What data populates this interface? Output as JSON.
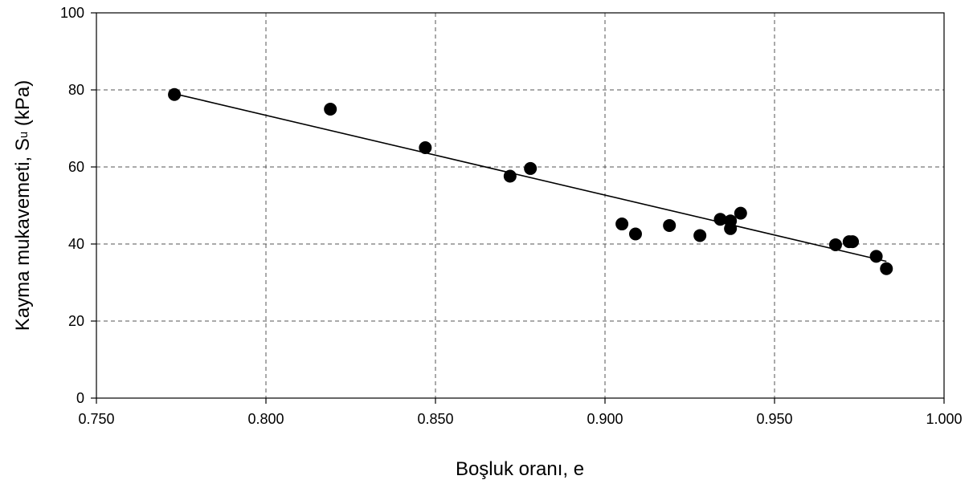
{
  "chart_data": {
    "type": "scatter",
    "xlabel": "Boşluk oranı, e",
    "ylabel": {
      "prefix": "Kayma mukavemeti, S",
      "subscript": "u",
      "suffix": " (kPa)"
    },
    "xlim": [
      0.75,
      1.0
    ],
    "ylim": [
      0,
      100
    ],
    "x_ticks": [
      "0.750",
      "0.800",
      "0.850",
      "0.900",
      "0.950",
      "1.000"
    ],
    "y_ticks": [
      "0",
      "20",
      "40",
      "60",
      "80",
      "100"
    ],
    "grid": true,
    "series": [
      {
        "points": [
          {
            "x": 0.773,
            "y": 78.8
          },
          {
            "x": 0.819,
            "y": 75.0
          },
          {
            "x": 0.847,
            "y": 65.0
          },
          {
            "x": 0.872,
            "y": 57.6
          },
          {
            "x": 0.878,
            "y": 59.6
          },
          {
            "x": 0.905,
            "y": 45.2
          },
          {
            "x": 0.909,
            "y": 42.6
          },
          {
            "x": 0.919,
            "y": 44.8
          },
          {
            "x": 0.928,
            "y": 42.2
          },
          {
            "x": 0.934,
            "y": 46.4
          },
          {
            "x": 0.937,
            "y": 44.0
          },
          {
            "x": 0.937,
            "y": 46.0
          },
          {
            "x": 0.94,
            "y": 48.0
          },
          {
            "x": 0.968,
            "y": 39.8
          },
          {
            "x": 0.972,
            "y": 40.6
          },
          {
            "x": 0.973,
            "y": 40.6
          },
          {
            "x": 0.98,
            "y": 36.8
          },
          {
            "x": 0.983,
            "y": 33.6
          }
        ]
      }
    ],
    "trendline": {
      "type": "linear",
      "x": [
        0.773,
        0.983
      ],
      "y": [
        79.0,
        35.5
      ]
    },
    "colors": {
      "marker": "#000000",
      "line": "#000000",
      "grid": "#555555"
    }
  }
}
